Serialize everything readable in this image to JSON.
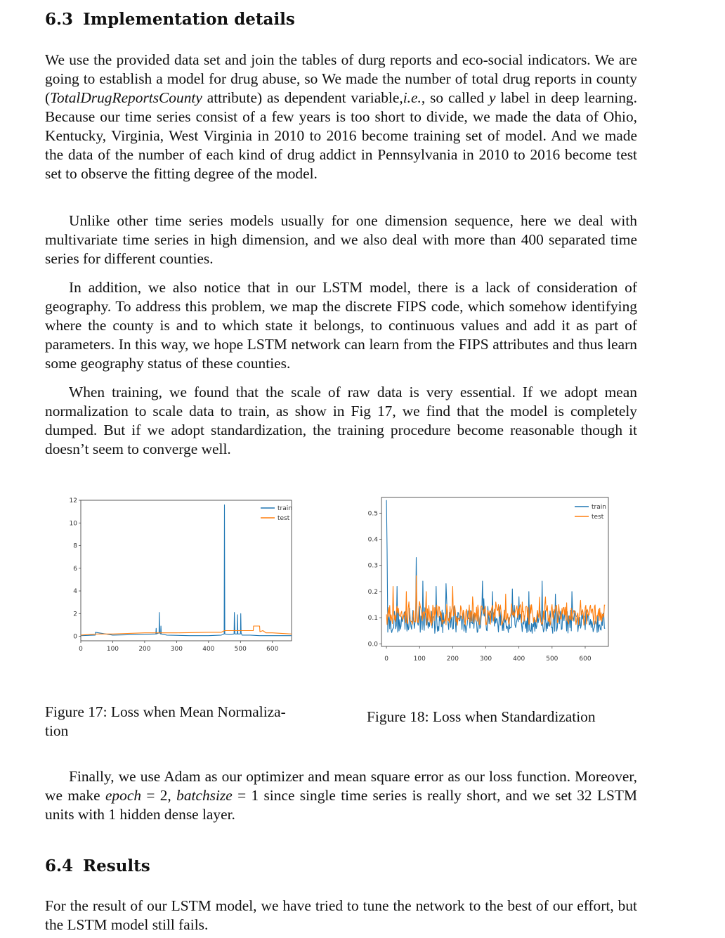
{
  "section_63": {
    "number": "6.3",
    "title": "Implementation details"
  },
  "p1": {
    "a": "We use the provided data set and join the tables of durg reports and eco-social indicators. We are going to establish a model for drug abuse, so We made the number of total drug reports in county (",
    "attr": "TotalDrugReportsCounty",
    "b": " attribute) as dependent variable,",
    "ie": "i.e.",
    "c": ", so called ",
    "y": "y",
    "d": " label in deep learning. Because our time series consist of a few years is too short to divide, we made the data of Ohio, Kentucky, Virginia, West Virginia in 2010 to 2016 become training set of model. And we made the data of the number of each kind of drug addict in Pennsylvania in 2010 to 2016 become test set to observe the fitting degree of the model."
  },
  "p2": "Unlike other time series models usually for one dimension sequence, here we deal with multivariate time series in high dimension, and we also deal with more than 400 separated time series for different counties.",
  "p3": "In addition, we also notice that in our LSTM model, there is a lack of consideration of geography. To address this problem, we map the discrete FIPS code, which somehow identifying where the county is and to which state it belongs, to continuous values and add it as part of parameters. In this way, we hope LSTM network can learn from the FIPS attributes and thus learn some geography status of these counties.",
  "p4": "When training, we found that the scale of raw data is very essential. If we adopt mean normalization to scale data to train, as show in Fig 17, we find that the model is completely dumped. But if we adopt standardization, the training procedure become reasonable though it doesn’t seem to converge well.",
  "colors": {
    "train": "#1f77b4",
    "test": "#ff7f0e"
  },
  "chart_data": [
    {
      "type": "line",
      "xlim": [
        0,
        660
      ],
      "ylim": [
        -0.4,
        12
      ],
      "xticks": [
        0,
        100,
        200,
        300,
        400,
        500,
        600
      ],
      "yticks": [
        0,
        2,
        4,
        6,
        8,
        10,
        12
      ],
      "legend": "top-right",
      "series": [
        {
          "name": "train",
          "x": [
            0,
            45,
            46,
            100,
            180,
            235,
            236,
            237,
            245,
            246,
            247,
            250,
            251,
            252,
            270,
            340,
            400,
            440,
            449,
            450,
            451,
            465,
            480,
            481,
            482,
            483,
            490,
            491,
            492,
            500,
            501,
            502,
            505,
            530,
            560,
            600,
            660
          ],
          "y": [
            0.05,
            0.1,
            0.35,
            0.1,
            0.15,
            0.2,
            0.7,
            0.2,
            0.3,
            2.1,
            0.3,
            0.2,
            0.9,
            0.2,
            0.1,
            0.05,
            0.05,
            0.1,
            0.2,
            11.6,
            0.2,
            0.15,
            0.2,
            2.1,
            1.0,
            0.2,
            0.2,
            1.9,
            0.2,
            0.2,
            2.0,
            0.3,
            0.1,
            0.1,
            0.05,
            0.05,
            0.05
          ]
        },
        {
          "name": "test",
          "x": [
            0,
            50,
            100,
            200,
            300,
            400,
            440,
            450,
            540,
            541,
            560,
            561,
            570,
            580,
            600,
            660
          ],
          "y": [
            0.1,
            0.2,
            0.2,
            0.3,
            0.3,
            0.35,
            0.35,
            0.5,
            0.5,
            0.9,
            0.9,
            0.4,
            0.5,
            0.3,
            0.3,
            0.2
          ]
        }
      ]
    },
    {
      "type": "line",
      "xlim": [
        -15,
        670
      ],
      "ylim": [
        -0.01,
        0.56
      ],
      "xticks": [
        0,
        100,
        200,
        300,
        400,
        500,
        600
      ],
      "yticks": [
        0.0,
        0.1,
        0.2,
        0.3,
        0.4,
        0.5
      ],
      "yticklabels": [
        "0.0",
        "0.1",
        "0.2",
        "0.3",
        "0.4",
        "0.5"
      ],
      "legend": "top-right",
      "series": [
        {
          "name": "train",
          "spikes": [
            [
              0,
              0.55
            ],
            [
              2,
              0.36
            ],
            [
              15,
              0.25
            ],
            [
              25,
              0.3
            ],
            [
              32,
              0.22
            ],
            [
              65,
              0.21
            ],
            [
              90,
              0.33
            ],
            [
              110,
              0.24
            ],
            [
              150,
              0.22
            ],
            [
              180,
              0.23
            ],
            [
              265,
              0.22
            ],
            [
              290,
              0.24
            ],
            [
              320,
              0.2
            ],
            [
              380,
              0.21
            ],
            [
              400,
              0.18
            ],
            [
              430,
              0.2
            ],
            [
              470,
              0.24
            ],
            [
              510,
              0.19
            ],
            [
              560,
              0.2
            ],
            [
              635,
              0.14
            ]
          ],
          "base": 0.085,
          "noise": 0.045
        },
        {
          "name": "test",
          "spikes": [
            [
              20,
              0.22
            ],
            [
              60,
              0.2
            ],
            [
              90,
              0.26
            ],
            [
              120,
              0.2
            ],
            [
              200,
              0.22
            ],
            [
              260,
              0.18
            ],
            [
              330,
              0.16
            ],
            [
              360,
              0.19
            ],
            [
              410,
              0.16
            ],
            [
              500,
              0.15
            ],
            [
              540,
              0.14
            ],
            [
              620,
              0.13
            ]
          ],
          "base": 0.11,
          "noise": 0.04
        }
      ]
    }
  ],
  "captions": {
    "fig17": "Figure 17: Loss when Mean Normalization",
    "fig17_l1": "Figure 17:  Loss when Mean Normaliza-",
    "fig17_l2": "tion",
    "fig18": "Figure 18: Loss when Standardization"
  },
  "p5": {
    "a": "Finally, we use Adam as our optimizer and mean square error as our loss function. Moreover, we make ",
    "math1": "epoch",
    "eq1": " = 2, ",
    "math2": "batchsize",
    "eq2": " = 1",
    "b": " since single time series is really short, and we set 32 LSTM units with 1 hidden dense layer."
  },
  "section_64": {
    "number": "6.4",
    "title": "Results"
  },
  "p6": "For the result of our LSTM model, we have tried to tune the network to the best of our effort, but the LSTM model still fails."
}
